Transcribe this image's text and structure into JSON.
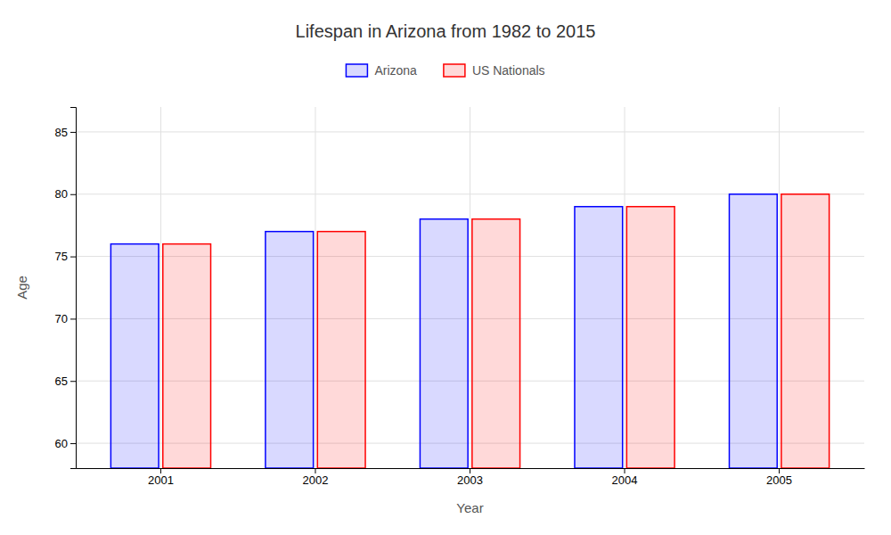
{
  "chart_data": {
    "type": "bar",
    "title": "Lifespan in Arizona from 1982 to 2015",
    "x_label": "Year",
    "y_label": "Age",
    "categories": [
      "2001",
      "2002",
      "2003",
      "2004",
      "2005"
    ],
    "series": [
      {
        "name": "Arizona",
        "color": "#0000ff",
        "values": [
          76,
          77,
          78,
          79,
          80
        ]
      },
      {
        "name": "US Nationals",
        "color": "#ff0000",
        "values": [
          76,
          77,
          78,
          79,
          80
        ]
      }
    ],
    "ylim": [
      58,
      87
    ],
    "yticks": [
      60,
      65,
      70,
      75,
      80,
      85
    ],
    "grid": true,
    "legend": "top"
  }
}
